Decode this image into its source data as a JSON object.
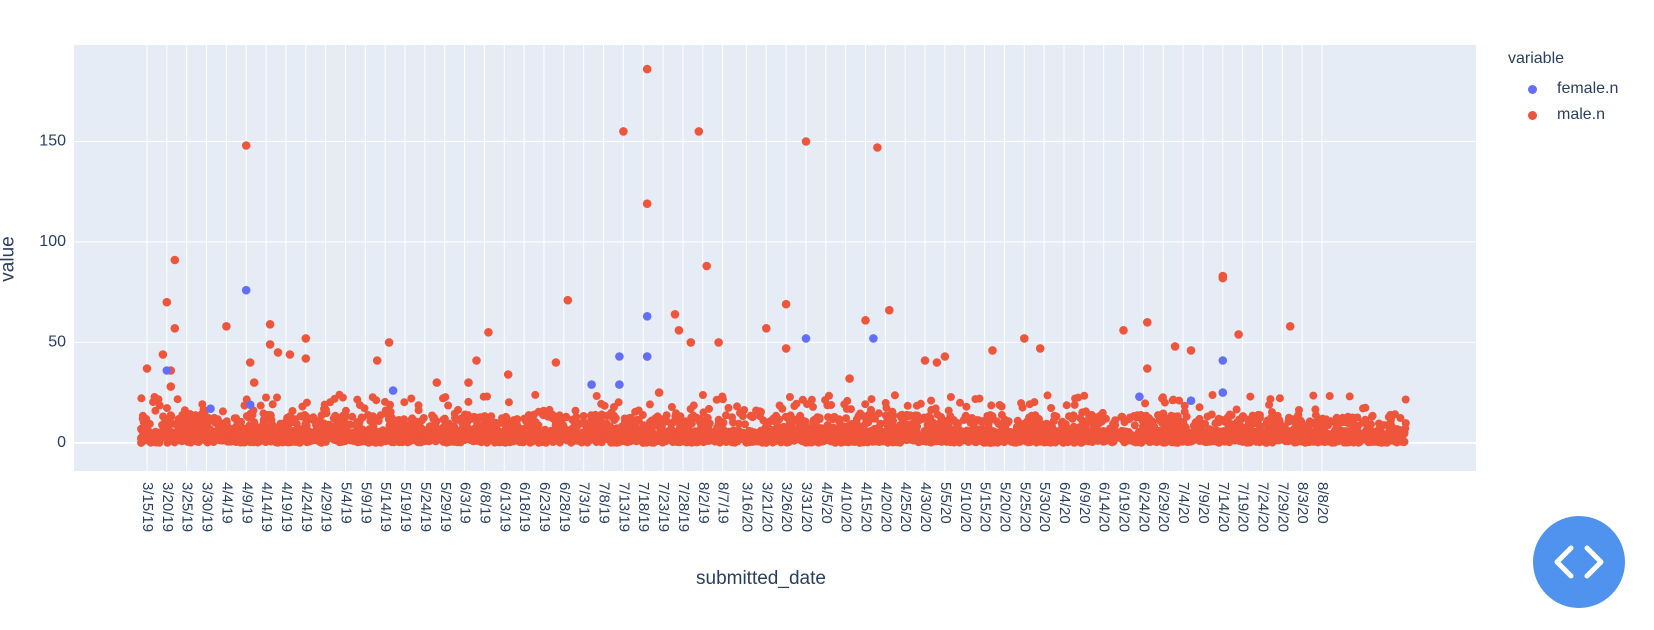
{
  "chart_data": {
    "type": "scatter",
    "title": "",
    "xlabel": "submitted_date",
    "ylabel": "value",
    "x_tick_labels": [
      "3/15/19",
      "3/20/19",
      "3/25/19",
      "3/30/19",
      "4/4/19",
      "4/9/19",
      "4/14/19",
      "4/19/19",
      "4/24/19",
      "4/29/19",
      "5/4/19",
      "5/9/19",
      "5/14/19",
      "5/19/19",
      "5/24/19",
      "5/29/19",
      "6/3/19",
      "6/8/19",
      "6/13/19",
      "6/18/19",
      "6/23/19",
      "6/28/19",
      "7/3/19",
      "7/8/19",
      "7/13/19",
      "7/18/19",
      "7/23/19",
      "7/28/19",
      "8/2/19",
      "8/7/19",
      "3/16/20",
      "3/21/20",
      "3/26/20",
      "3/31/20",
      "4/5/20",
      "4/10/20",
      "4/15/20",
      "4/20/20",
      "4/25/20",
      "4/30/20",
      "5/5/20",
      "5/10/20",
      "5/15/20",
      "5/20/20",
      "5/25/20",
      "5/30/20",
      "6/4/20",
      "6/9/20",
      "6/14/20",
      "6/19/20",
      "6/24/20",
      "6/29/20",
      "7/4/20",
      "7/9/20",
      "7/14/20",
      "7/19/20",
      "7/24/20",
      "7/29/20",
      "8/3/20",
      "8/8/20"
    ],
    "y_ticks": [
      0,
      50,
      100,
      150
    ],
    "ylim": [
      -14,
      198
    ],
    "grid": true,
    "legend": {
      "title": "variable",
      "position": "top-right"
    },
    "series": [
      {
        "name": "female.n",
        "color": "#636efa",
        "points": [
          {
            "x": "3/20/19",
            "y": 36
          },
          {
            "x": "3/31/19",
            "y": 17
          },
          {
            "x": "4/9/19",
            "y": 76
          },
          {
            "x": "4/10/19",
            "y": 19
          },
          {
            "x": "5/16/19",
            "y": 26
          },
          {
            "x": "7/5/19",
            "y": 29
          },
          {
            "x": "7/12/19",
            "y": 43
          },
          {
            "x": "7/12/19",
            "y": 29
          },
          {
            "x": "7/19/19",
            "y": 63
          },
          {
            "x": "7/19/19",
            "y": 43
          },
          {
            "x": "3/31/20",
            "y": 52
          },
          {
            "x": "4/17/20",
            "y": 52
          },
          {
            "x": "6/23/20",
            "y": 23
          },
          {
            "x": "7/6/20",
            "y": 21
          },
          {
            "x": "7/14/20",
            "y": 41
          },
          {
            "x": "7/14/20",
            "y": 25
          }
        ]
      },
      {
        "name": "male.n",
        "color": "#ef553b",
        "points": [
          {
            "x": "3/15/19",
            "y": 37
          },
          {
            "x": "3/19/19",
            "y": 44
          },
          {
            "x": "3/20/19",
            "y": 70
          },
          {
            "x": "3/21/19",
            "y": 36
          },
          {
            "x": "3/22/19",
            "y": 91
          },
          {
            "x": "3/22/19",
            "y": 57
          },
          {
            "x": "4/4/19",
            "y": 58
          },
          {
            "x": "4/9/19",
            "y": 148
          },
          {
            "x": "4/10/19",
            "y": 40
          },
          {
            "x": "4/15/19",
            "y": 59
          },
          {
            "x": "4/15/19",
            "y": 49
          },
          {
            "x": "4/17/19",
            "y": 45
          },
          {
            "x": "4/20/19",
            "y": 44
          },
          {
            "x": "4/24/19",
            "y": 52
          },
          {
            "x": "4/24/19",
            "y": 42
          },
          {
            "x": "5/15/19",
            "y": 50
          },
          {
            "x": "5/12/19",
            "y": 41
          },
          {
            "x": "6/6/19",
            "y": 41
          },
          {
            "x": "6/9/19",
            "y": 55
          },
          {
            "x": "6/14/19",
            "y": 34
          },
          {
            "x": "6/26/19",
            "y": 40
          },
          {
            "x": "6/29/19",
            "y": 71
          },
          {
            "x": "7/13/19",
            "y": 155
          },
          {
            "x": "7/19/19",
            "y": 186
          },
          {
            "x": "7/19/19",
            "y": 119
          },
          {
            "x": "7/26/19",
            "y": 64
          },
          {
            "x": "7/27/19",
            "y": 56
          },
          {
            "x": "7/30/19",
            "y": 50
          },
          {
            "x": "8/1/19",
            "y": 155
          },
          {
            "x": "8/3/19",
            "y": 88
          },
          {
            "x": "8/6/19",
            "y": 50
          },
          {
            "x": "3/21/20",
            "y": 57
          },
          {
            "x": "3/26/20",
            "y": 69
          },
          {
            "x": "3/26/20",
            "y": 47
          },
          {
            "x": "3/31/20",
            "y": 150
          },
          {
            "x": "4/15/20",
            "y": 61
          },
          {
            "x": "4/18/20",
            "y": 147
          },
          {
            "x": "4/21/20",
            "y": 66
          },
          {
            "x": "4/30/20",
            "y": 41
          },
          {
            "x": "5/5/20",
            "y": 43
          },
          {
            "x": "5/17/20",
            "y": 46
          },
          {
            "x": "5/25/20",
            "y": 52
          },
          {
            "x": "5/29/20",
            "y": 47
          },
          {
            "x": "6/19/20",
            "y": 56
          },
          {
            "x": "6/25/20",
            "y": 60
          },
          {
            "x": "7/2/20",
            "y": 48
          },
          {
            "x": "7/6/20",
            "y": 46
          },
          {
            "x": "7/14/20",
            "y": 83
          },
          {
            "x": "7/14/20",
            "y": 82
          },
          {
            "x": "7/18/20",
            "y": 54
          },
          {
            "x": "7/31/20",
            "y": 58
          },
          {
            "x": "7/19/19",
            "y": 43
          },
          {
            "x": "3/21/19",
            "y": 28
          },
          {
            "x": "4/11/19",
            "y": 30
          },
          {
            "x": "6/4/19",
            "y": 30
          },
          {
            "x": "5/27/19",
            "y": 30
          },
          {
            "x": "7/22/19",
            "y": 25
          },
          {
            "x": "5/3/20",
            "y": 40
          },
          {
            "x": "4/11/20",
            "y": 32
          },
          {
            "x": "6/25/20",
            "y": 37
          }
        ]
      }
    ]
  },
  "ui": {
    "code_button_label": "‹›"
  }
}
